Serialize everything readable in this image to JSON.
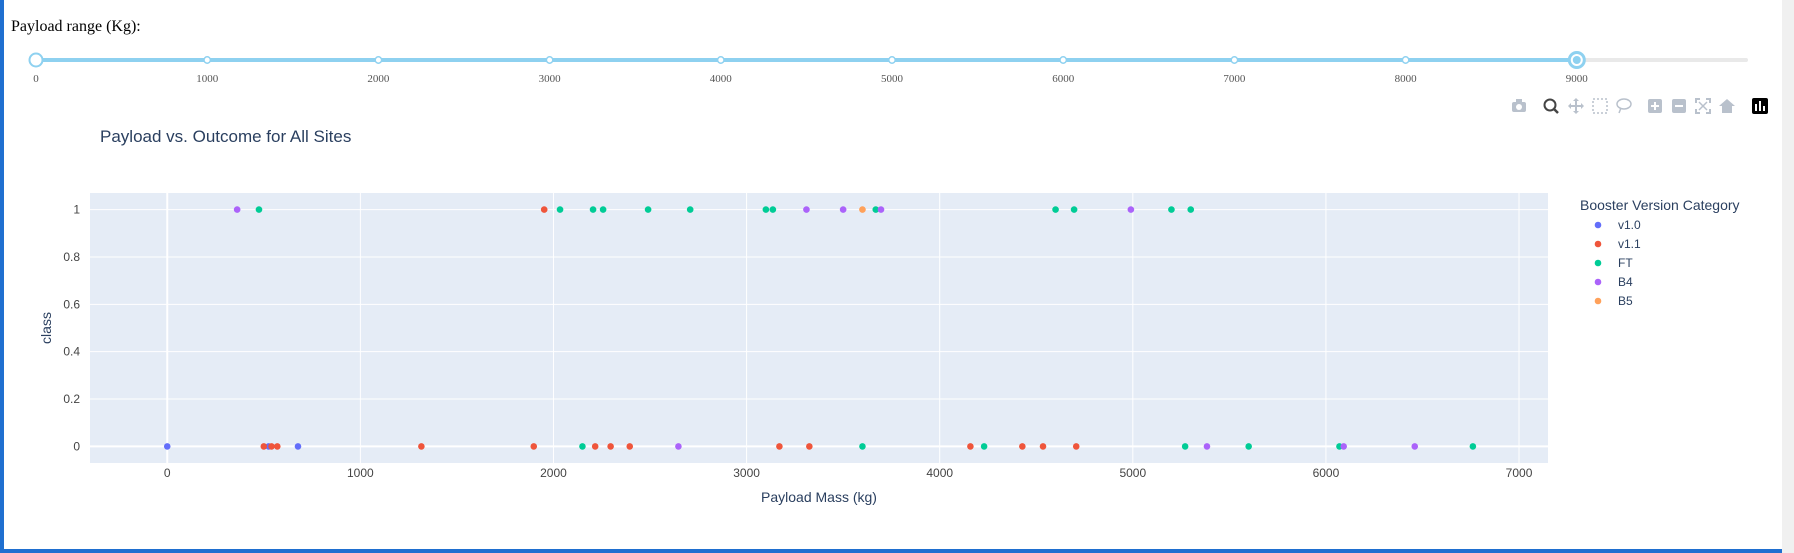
{
  "slider": {
    "title": "Payload range (Kg):",
    "min": 0,
    "max": 10000,
    "value": [
      0,
      9000
    ],
    "marks": [
      "0",
      "1000",
      "2000",
      "3000",
      "4000",
      "5000",
      "6000",
      "7000",
      "8000",
      "9000"
    ]
  },
  "modebar": {
    "icons": [
      "camera-icon",
      "zoom-icon",
      "pan-icon",
      "box-select-icon",
      "lasso-select-icon",
      "zoom-in-icon",
      "zoom-out-icon",
      "autoscale-icon",
      "reset-axes-icon",
      "plotly-logo-icon"
    ]
  },
  "colors": {
    "plot_bg": "#e5ecf6",
    "accent": "#8ed1f0"
  },
  "chart_data": {
    "type": "scatter",
    "title": "Payload vs. Outcome for All Sites",
    "xlabel": "Payload Mass (kg)",
    "ylabel": "class",
    "xlim": [
      -400,
      7150
    ],
    "ylim": [
      -0.07,
      1.07
    ],
    "xticks": [
      "0",
      "1000",
      "2000",
      "3000",
      "4000",
      "5000",
      "6000",
      "7000"
    ],
    "yticks": [
      "0",
      "0.2",
      "0.4",
      "0.6",
      "0.8",
      "1"
    ],
    "grid": true,
    "legend": {
      "title": "Booster Version Category",
      "placement": "right"
    },
    "series": [
      {
        "name": "v1.0",
        "color": "#636efa",
        "points": [
          [
            0,
            0
          ],
          [
            525,
            0
          ],
          [
            677,
            0
          ]
        ]
      },
      {
        "name": "v1.1",
        "color": "#ef553b",
        "points": [
          [
            500,
            0
          ],
          [
            540,
            0
          ],
          [
            570,
            0
          ],
          [
            1316,
            0
          ],
          [
            1898,
            0
          ],
          [
            1952,
            1
          ],
          [
            2216,
            0
          ],
          [
            2296,
            0
          ],
          [
            2395,
            0
          ],
          [
            3170,
            0
          ],
          [
            3325,
            0
          ],
          [
            4159,
            0
          ],
          [
            4428,
            0
          ],
          [
            4535,
            0
          ],
          [
            4707,
            0
          ]
        ]
      },
      {
        "name": "FT",
        "color": "#00cc96",
        "points": [
          [
            475,
            1
          ],
          [
            2034,
            1
          ],
          [
            2205,
            1
          ],
          [
            2257,
            1
          ],
          [
            2490,
            1
          ],
          [
            2708,
            1
          ],
          [
            3100,
            1
          ],
          [
            3136,
            1
          ],
          [
            3669,
            1
          ],
          [
            4600,
            1
          ],
          [
            4696,
            1
          ],
          [
            5200,
            1
          ],
          [
            5300,
            1
          ],
          [
            2150,
            0
          ],
          [
            3600,
            0
          ],
          [
            4230,
            0
          ],
          [
            5271,
            0
          ],
          [
            5600,
            0
          ],
          [
            6070,
            0
          ],
          [
            6761,
            0
          ]
        ]
      },
      {
        "name": "B4",
        "color": "#ab63fa",
        "points": [
          [
            362,
            1
          ],
          [
            3310,
            1
          ],
          [
            3500,
            1
          ],
          [
            3696,
            1
          ],
          [
            4990,
            1
          ],
          [
            2647,
            0
          ],
          [
            5384,
            0
          ],
          [
            6092,
            0
          ],
          [
            6460,
            0
          ]
        ]
      },
      {
        "name": "B5",
        "color": "#ffa15a",
        "points": [
          [
            3600,
            1
          ]
        ]
      }
    ]
  }
}
